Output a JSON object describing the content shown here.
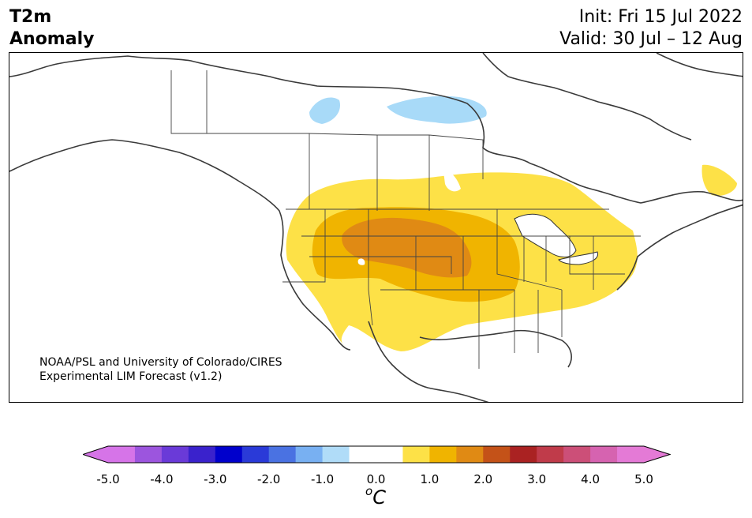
{
  "header": {
    "variable": "T2m",
    "metric": "Anomaly",
    "init": "Init: Fri 15 Jul 2022",
    "valid": "Valid: 30 Jul – 12 Aug"
  },
  "map": {
    "credit_line1": "NOAA/PSL and University of Colorado/CIRES",
    "credit_line2": "Experimental LIM Forecast (v1.2)",
    "features": [
      {
        "name": "cool-anomaly-northern-canada",
        "anomaly_c": -0.75
      },
      {
        "name": "warm-anomaly-northern-great-plains",
        "anomaly_c": 2.25
      },
      {
        "name": "warm-anomaly-central-us",
        "anomaly_c": 1.5
      },
      {
        "name": "warm-anomaly-labrador",
        "anomaly_c": 0.75
      }
    ]
  },
  "colorbar": {
    "unit_symbol": "o",
    "unit_letter": "C",
    "tick_labels": [
      "-5.0",
      "-4.0",
      "-3.0",
      "-2.0",
      "-1.0",
      "0.0",
      "1.0",
      "2.0",
      "3.0",
      "4.0",
      "5.0"
    ],
    "colors": [
      "#d674e8",
      "#9c55de",
      "#6a3ad8",
      "#3a22cc",
      "#0000cc",
      "#2a3ad8",
      "#4a72e2",
      "#78b0f2",
      "#b0dcf8",
      "#ffffff",
      "#ffffff",
      "#fde147",
      "#f0b400",
      "#e08a14",
      "#c45218",
      "#aa2222",
      "#c03b4a",
      "#cc4f78",
      "#d663b0",
      "#e47ad6"
    ],
    "under_color": "#d674e8",
    "over_color": "#e47ad6"
  }
}
